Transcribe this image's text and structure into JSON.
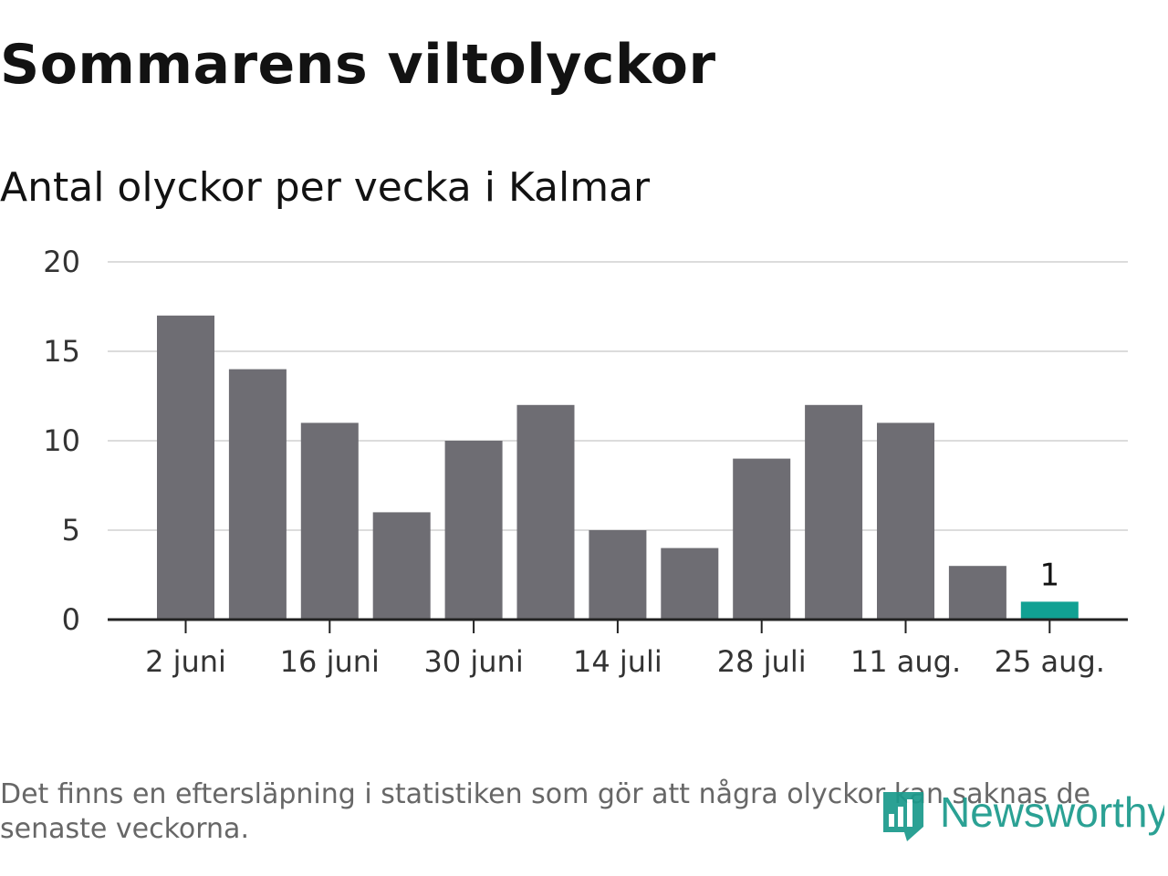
{
  "title": "Sommarens viltolyckor",
  "subtitle": "Antal olyckor per vecka i Kalmar",
  "footnote": "Det finns en eftersläpning i statistiken som gör att några olyckor kan saknas de senaste veckorna.",
  "logo": {
    "text": "Newsworthy",
    "icon": "bar-chart-logo-icon",
    "color": "#1a9a8c"
  },
  "colors": {
    "bar": "#6e6d73",
    "highlight": "#11a193",
    "grid": "#dcdcdc",
    "axis": "#222222"
  },
  "chart_data": {
    "type": "bar",
    "x_ticks": [
      "2 juni",
      "16 juni",
      "30 juni",
      "14 juli",
      "28 juli",
      "11 aug.",
      "25 aug."
    ],
    "values": [
      17,
      14,
      11,
      6,
      10,
      12,
      5,
      4,
      9,
      12,
      11,
      3,
      1
    ],
    "highlight_index": 12,
    "data_labels": [
      {
        "index": 12,
        "text": "1"
      }
    ],
    "y_ticks": [
      0,
      5,
      10,
      15,
      20
    ],
    "ylim": [
      0,
      20
    ],
    "grid": true,
    "xlabel": "",
    "ylabel": ""
  }
}
